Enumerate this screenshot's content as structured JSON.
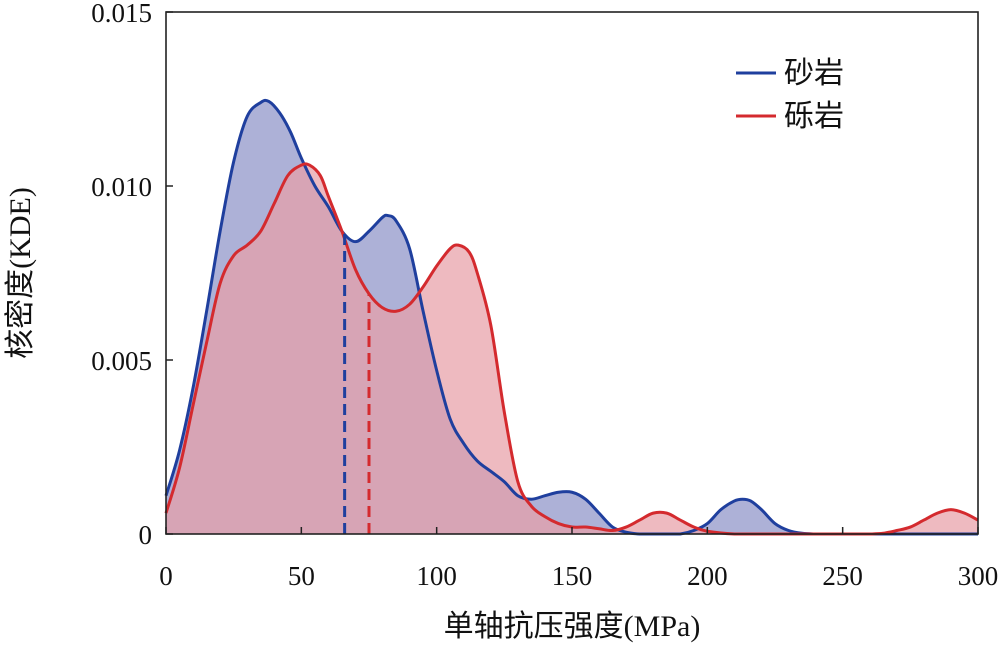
{
  "chart_data": {
    "type": "area",
    "xlabel": "单轴抗压强度(MPa)",
    "ylabel": "核密度(KDE)",
    "xlim": [
      0,
      300
    ],
    "ylim": [
      0,
      0.015
    ],
    "xticks": [
      {
        "value": 0,
        "label": "0"
      },
      {
        "value": 50,
        "label": "50"
      },
      {
        "value": 100,
        "label": "100"
      },
      {
        "value": 150,
        "label": "150"
      },
      {
        "value": 200,
        "label": "200"
      },
      {
        "value": 250,
        "label": "250"
      },
      {
        "value": 300,
        "label": "300"
      }
    ],
    "yticks": [
      {
        "value": 0,
        "label": "0"
      },
      {
        "value": 0.005,
        "label": "0.005"
      },
      {
        "value": 0.01,
        "label": "0.010"
      },
      {
        "value": 0.015,
        "label": "0.015"
      }
    ],
    "grid": false,
    "legend_position": "top-right",
    "series": [
      {
        "name": "砂岩",
        "color": "#1f3f9e",
        "fill": "#8e93c8",
        "mean_line_x": 66,
        "x": [
          0,
          5,
          10,
          15,
          20,
          25,
          30,
          35,
          38,
          42,
          46,
          50,
          55,
          60,
          65,
          70,
          75,
          80,
          82,
          85,
          90,
          95,
          100,
          105,
          110,
          115,
          120,
          125,
          130,
          135,
          140,
          145,
          150,
          155,
          160,
          165,
          170,
          175,
          180,
          185,
          190,
          195,
          200,
          205,
          210,
          213,
          216,
          220,
          225,
          230,
          235,
          240,
          245,
          250,
          260,
          270,
          280,
          290,
          300
        ],
        "y": [
          0.0011,
          0.0024,
          0.0042,
          0.0064,
          0.0087,
          0.0107,
          0.012,
          0.0124,
          0.01243,
          0.0121,
          0.01155,
          0.0108,
          0.01,
          0.0094,
          0.0087,
          0.0084,
          0.0087,
          0.0091,
          0.00915,
          0.009,
          0.0082,
          0.0064,
          0.0047,
          0.0033,
          0.0026,
          0.0021,
          0.0018,
          0.0015,
          0.0011,
          0.001,
          0.0011,
          0.0012,
          0.0012,
          0.001,
          0.0006,
          0.0002,
          5e-05,
          0.0,
          0.0,
          0.0,
          0.0,
          0.0001,
          0.0003,
          0.0007,
          0.00095,
          0.001,
          0.00095,
          0.0007,
          0.0003,
          0.0001,
          2e-05,
          0.0,
          0.0,
          0.0,
          0.0,
          0.0,
          0.0,
          0.0,
          0.0
        ]
      },
      {
        "name": "砾岩",
        "color": "#d42a2e",
        "fill": "#e8a0a8",
        "mean_line_x": 75,
        "x": [
          0,
          5,
          10,
          15,
          20,
          25,
          30,
          35,
          40,
          45,
          50,
          53,
          57,
          60,
          65,
          70,
          75,
          80,
          85,
          90,
          95,
          100,
          105,
          108,
          112,
          115,
          120,
          125,
          130,
          135,
          140,
          145,
          150,
          155,
          160,
          165,
          170,
          175,
          180,
          185,
          190,
          195,
          200,
          210,
          220,
          230,
          240,
          250,
          255,
          260,
          265,
          270,
          275,
          280,
          285,
          290,
          295,
          300
        ],
        "y": [
          0.0006,
          0.0019,
          0.0037,
          0.0055,
          0.0072,
          0.008,
          0.0083,
          0.0087,
          0.0095,
          0.0103,
          0.0106,
          0.0106,
          0.0103,
          0.0097,
          0.0087,
          0.0076,
          0.0069,
          0.0065,
          0.0064,
          0.0066,
          0.0071,
          0.0077,
          0.0082,
          0.0083,
          0.0081,
          0.0075,
          0.006,
          0.0035,
          0.0015,
          0.0008,
          0.0005,
          0.0003,
          0.0002,
          0.0002,
          0.00015,
          0.0001,
          0.0002,
          0.0004,
          0.0006,
          0.0006,
          0.0004,
          0.0002,
          8e-05,
          0.0,
          0.0,
          0.0,
          0.0,
          0.0,
          0.0,
          0.0,
          2e-05,
          0.0001,
          0.0002,
          0.0004,
          0.0006,
          0.0007,
          0.0006,
          0.0004
        ]
      }
    ]
  }
}
